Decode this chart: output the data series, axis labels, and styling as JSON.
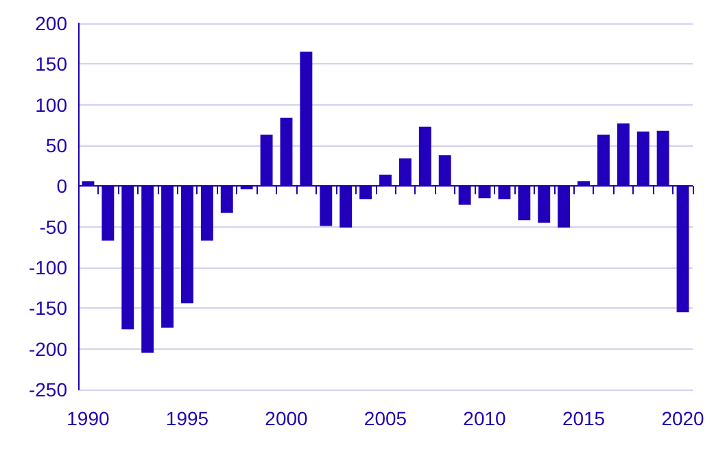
{
  "chart_data": {
    "type": "bar",
    "categories": [
      "1990",
      null,
      null,
      null,
      null,
      "1995",
      null,
      null,
      null,
      null,
      "2000",
      null,
      null,
      null,
      null,
      "2005",
      null,
      null,
      null,
      null,
      "2010",
      null,
      null,
      null,
      null,
      "2015",
      null,
      null,
      null,
      null,
      "2020"
    ],
    "values": [
      6,
      -67,
      -176,
      -205,
      -174,
      -144,
      -67,
      -33,
      -4,
      63,
      84,
      165,
      -49,
      -51,
      -16,
      14,
      34,
      73,
      38,
      -23,
      -15,
      -16,
      -42,
      -45,
      -51,
      6,
      63,
      77,
      67,
      68,
      -155
    ],
    "color": "#2200bb",
    "ylim": [
      -250,
      200
    ],
    "yticks": [
      -250,
      -200,
      -150,
      -100,
      -50,
      0,
      50,
      100,
      150,
      200
    ],
    "grid": "y",
    "ref_lines": [
      {
        "axis": "y",
        "value": 0,
        "color": "#1f00b0"
      }
    ]
  }
}
